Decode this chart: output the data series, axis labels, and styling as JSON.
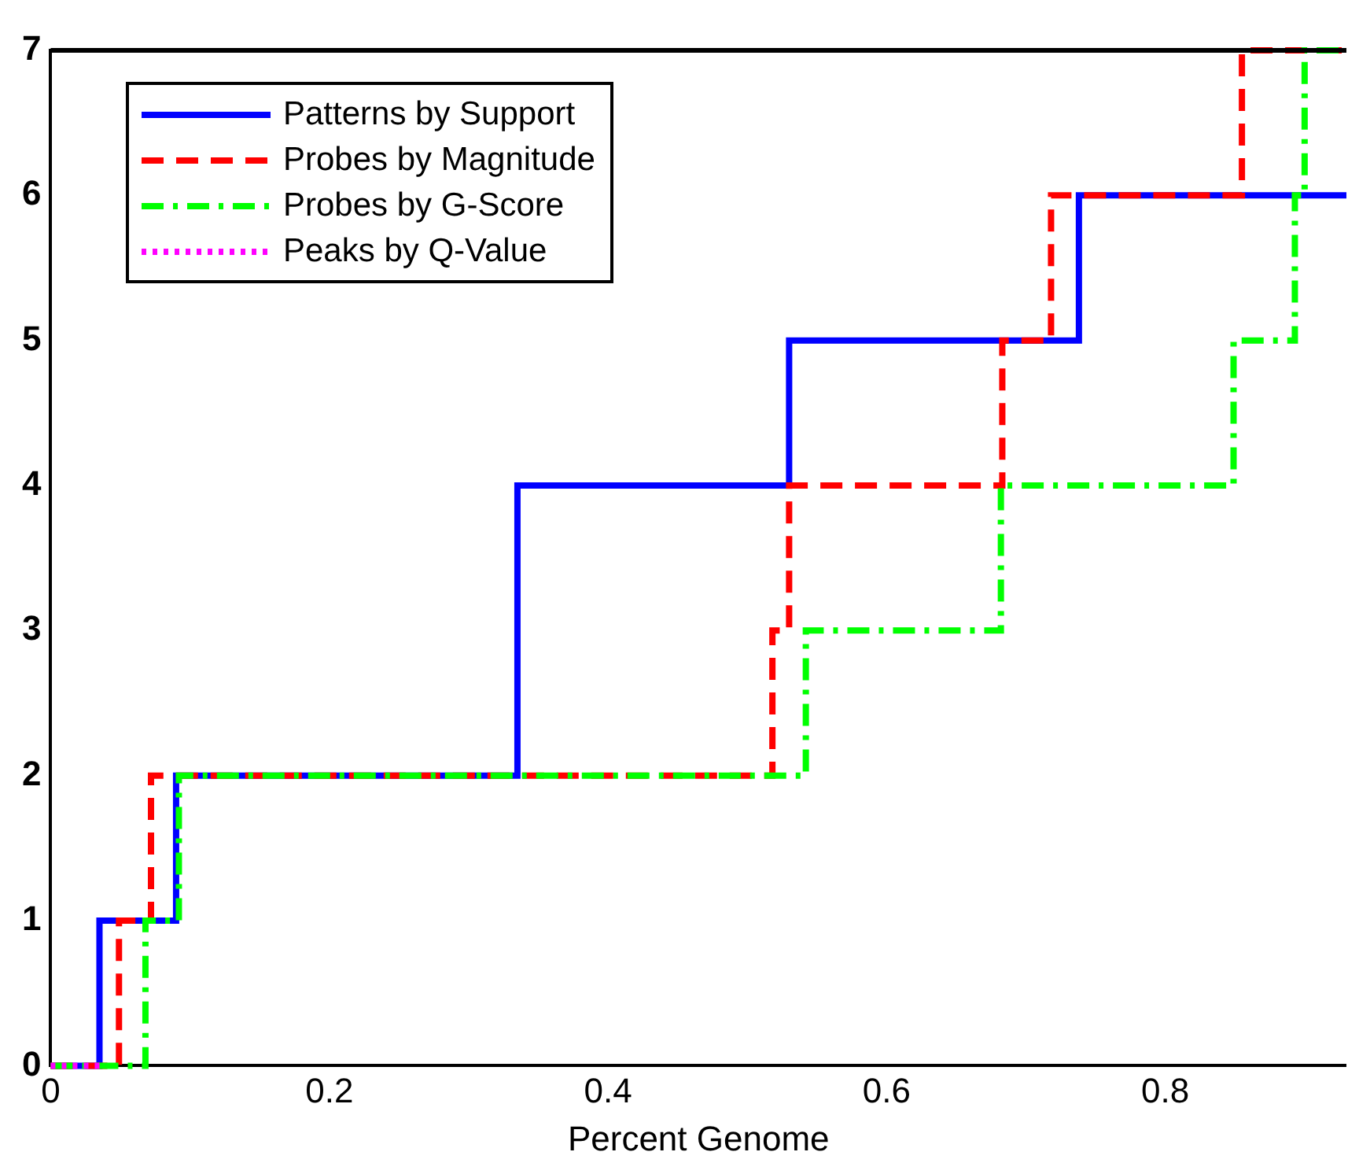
{
  "chart_data": {
    "type": "step",
    "xlabel": "Percent Genome",
    "xlim": [
      0,
      0.93
    ],
    "xticks": [
      0,
      0.2,
      0.4,
      0.6,
      0.8
    ],
    "ylim": [
      0,
      7
    ],
    "yticks": [
      0,
      1,
      2,
      3,
      4,
      5,
      6,
      7
    ],
    "grid": false,
    "legend": "top left",
    "marker": "none",
    "series": [
      {
        "name": "Patterns by Support",
        "color": "#0000ff",
        "line_style": "solid",
        "x": [
          0,
          0.035,
          0.09,
          0.335,
          0.53,
          0.738,
          0.93
        ],
        "values": [
          0,
          1,
          2,
          4,
          5,
          6,
          6
        ]
      },
      {
        "name": "Probes by Magnitude",
        "color": "#ff0000",
        "line_style": "dashed",
        "x": [
          0,
          0.049,
          0.072,
          0.518,
          0.53,
          0.683,
          0.718,
          0.855,
          0.93
        ],
        "values": [
          0,
          1,
          2,
          3,
          4,
          5,
          6,
          7,
          7
        ]
      },
      {
        "name": "Probes by G-Score",
        "color": "#00ff00",
        "line_style": "dashdot",
        "x": [
          0,
          0.068,
          0.092,
          0.542,
          0.682,
          0.849,
          0.893,
          0.9,
          0.93
        ],
        "values": [
          0,
          1,
          2,
          3,
          4,
          5,
          6,
          7,
          7
        ]
      },
      {
        "name": "Peaks by Q-Value",
        "color": "#ff00ff",
        "line_style": "dotted",
        "x": [
          0,
          0.035
        ],
        "values": [
          0,
          0
        ]
      }
    ]
  }
}
